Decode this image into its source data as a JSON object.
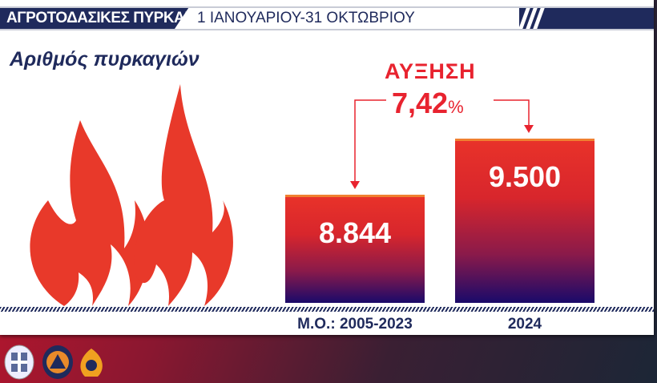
{
  "header": {
    "title": "ΑΓΡΟΤΟΔΑΣΙΚΕΣ ΠΥΡΚΑΓΙΕΣ",
    "period": "1 ΙΑΝΟΥΑΡΙΟΥ-31 ΟΚΤΩΒΡΙΟΥ"
  },
  "chart_data": {
    "type": "bar",
    "title": "Αριθμός πυρκαγιών",
    "categories": [
      "Μ.Ο.: 2005-2023",
      "2024"
    ],
    "values": [
      8844,
      9500
    ],
    "value_labels": [
      "8.844",
      "9.500"
    ],
    "ylim": [
      7580,
      9500
    ],
    "grid": false,
    "annotation": {
      "label": "ΑΥΞΗΣΗ",
      "value": "7,42",
      "unit": "%"
    },
    "colors": {
      "bar_top": "#e8322a",
      "bar_bottom": "#1a0a6a",
      "text": "#1f2a5c",
      "accent": "#e8232f"
    }
  },
  "icons": [
    "flame-icon",
    "greek-coat-of-arms-logo",
    "civil-protection-logo",
    "fire-service-logo"
  ]
}
